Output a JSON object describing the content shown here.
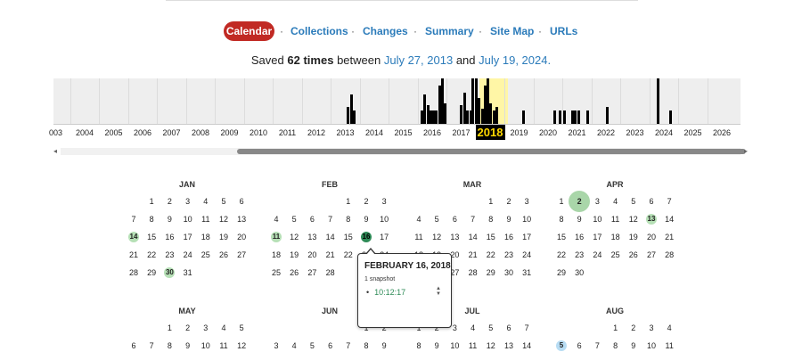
{
  "nav": {
    "items": [
      {
        "label": "Calendar",
        "active": true
      },
      {
        "label": "Collections"
      },
      {
        "label": "Changes"
      },
      {
        "label": "Summary"
      },
      {
        "label": "Site Map"
      },
      {
        "label": "URLs"
      }
    ],
    "separator": "·"
  },
  "summary": {
    "prefix": "Saved",
    "count": "62 times",
    "between": "between",
    "first": "July 27, 2013",
    "and": "and",
    "last": "July 19, 2024."
  },
  "timeline": {
    "years": [
      "003",
      "2004",
      "2005",
      "2006",
      "2007",
      "2008",
      "2009",
      "2010",
      "2011",
      "2012",
      "2013",
      "2014",
      "2015",
      "2016",
      "2017",
      "2018",
      "2019",
      "2020",
      "2021",
      "2022",
      "2023",
      "2024",
      "2025",
      "2026"
    ],
    "selected_year": "2018",
    "colors": {
      "bar": "#000000",
      "highlight": "#fff6a6",
      "background": "#eeeeee"
    }
  },
  "scrollbar": {
    "left_arrow": "◂",
    "right_arrow": "▸"
  },
  "calendar": {
    "months": [
      {
        "name": "JAN",
        "start": 1,
        "days": 31,
        "captures": [
          {
            "d": 14,
            "s": "light"
          },
          {
            "d": 30,
            "s": "light"
          }
        ]
      },
      {
        "name": "FEB",
        "start": 4,
        "days": 28,
        "captures": [
          {
            "d": 11,
            "s": "light"
          },
          {
            "d": 16,
            "s": "dark"
          }
        ]
      },
      {
        "name": "MAR",
        "start": 4,
        "days": 31,
        "captures": []
      },
      {
        "name": "APR",
        "start": 0,
        "days": 30,
        "captures": [
          {
            "d": 2,
            "s": "big"
          },
          {
            "d": 13,
            "s": "light"
          }
        ]
      },
      {
        "name": "MAY",
        "start": 2,
        "days": 12,
        "captures": []
      },
      {
        "name": "JUN",
        "start": 5,
        "days": 9,
        "captures": []
      },
      {
        "name": "JUL",
        "start": 0,
        "days": 14,
        "captures": []
      },
      {
        "name": "AUG",
        "start": 3,
        "days": 11,
        "captures": [
          {
            "d": 5,
            "s": "blue"
          }
        ]
      }
    ]
  },
  "popup": {
    "date": "FEBRUARY 16, 2018",
    "count": "1 snapshot",
    "bullet": "•",
    "time": "10:12:17",
    "spinner_up": "▲",
    "spinner_down": "▼"
  }
}
